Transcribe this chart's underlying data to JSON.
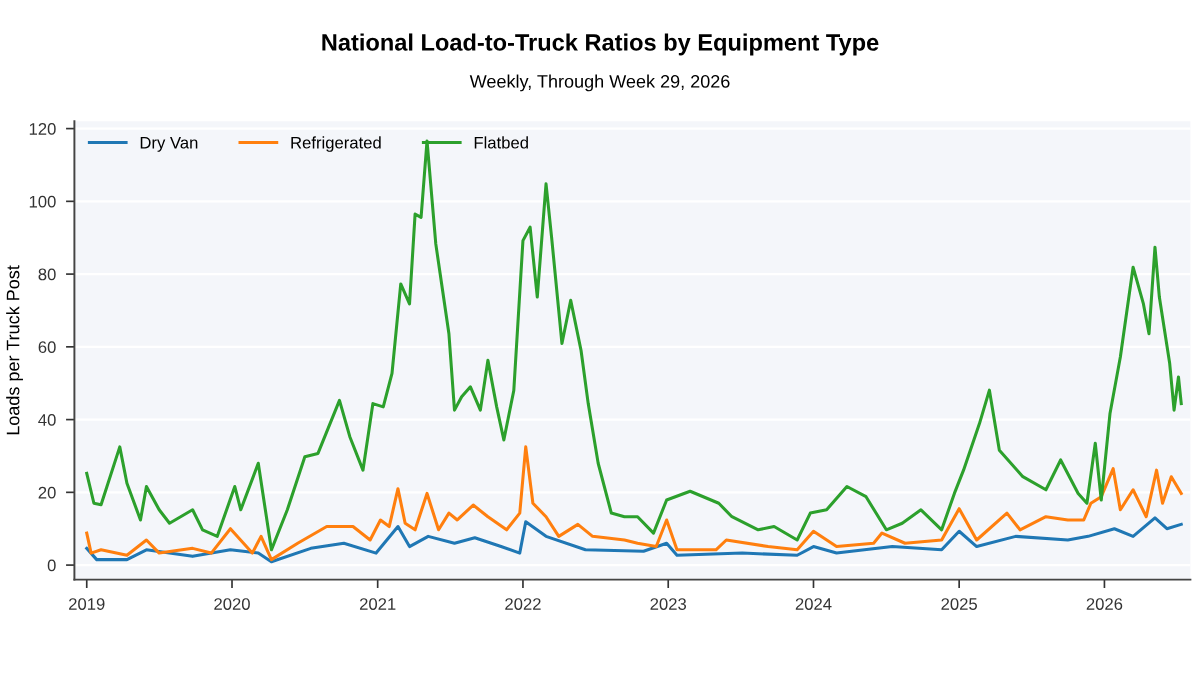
{
  "chart_data": {
    "type": "line",
    "title": "National Load-to-Truck Ratios by Equipment Type",
    "subtitle": "Weekly, Through Week 29, 2026",
    "ylabel": "Loads per Truck Post",
    "xlim": [
      "2018-12-01",
      "2026-08-05"
    ],
    "ylim": [
      -4,
      122
    ],
    "xticks": [
      {
        "value": "2019-01-01",
        "label": "2019"
      },
      {
        "value": "2020-01-01",
        "label": "2020"
      },
      {
        "value": "2021-01-01",
        "label": "2021"
      },
      {
        "value": "2022-01-01",
        "label": "2022"
      },
      {
        "value": "2023-01-01",
        "label": "2023"
      },
      {
        "value": "2024-01-01",
        "label": "2024"
      },
      {
        "value": "2025-01-01",
        "label": "2025"
      },
      {
        "value": "2026-01-01",
        "label": "2026"
      }
    ],
    "yticks": [
      0,
      20,
      40,
      60,
      80,
      100,
      120
    ],
    "grid": "y",
    "legend": "top left",
    "line_style": "solid",
    "marker": "none",
    "series": [
      {
        "name": "Dry Van",
        "color": "#1f77b4",
        "x": [
          "2019-01-01",
          "2019-01-26",
          "2019-04-12",
          "2019-05-31",
          "2019-09-24",
          "2019-12-28",
          "2020-03-07",
          "2020-04-09",
          "2020-07-17",
          "2020-10-08",
          "2020-12-28",
          "2021-02-21",
          "2021-03-22",
          "2021-05-08",
          "2021-07-13",
          "2021-09-02",
          "2021-11-07",
          "2021-12-24",
          "2022-01-08",
          "2022-02-28",
          "2022-06-07",
          "2022-10-31",
          "2022-12-28",
          "2023-01-23",
          "2023-07-06",
          "2023-11-21",
          "2024-01-01",
          "2024-02-28",
          "2024-07-17",
          "2024-11-18",
          "2025-01-01",
          "2025-02-14",
          "2025-05-23",
          "2025-10-01",
          "2025-11-21",
          "2026-01-26",
          "2026-03-14",
          "2026-05-08",
          "2026-06-07",
          "2026-07-13"
        ],
        "values": [
          4.6,
          1.5,
          1.5,
          4.2,
          2.4,
          4.2,
          3.3,
          0.9,
          4.6,
          6,
          3.3,
          10.6,
          5.1,
          7.9,
          6,
          7.5,
          5.1,
          3.3,
          11.9,
          7.9,
          4.2,
          3.8,
          6,
          2.7,
          3.3,
          2.7,
          5.1,
          3.3,
          5.1,
          4.2,
          9.3,
          5.1,
          7.9,
          6.9,
          7.9,
          10,
          7.9,
          13,
          10,
          11.2
        ]
      },
      {
        "name": "Refrigerated",
        "color": "#ff7f0e",
        "x": [
          "2019-01-01",
          "2019-01-12",
          "2019-02-06",
          "2019-04-12",
          "2019-05-31",
          "2019-07-02",
          "2019-09-24",
          "2019-11-10",
          "2019-12-28",
          "2020-02-21",
          "2020-03-14",
          "2020-04-09",
          "2020-06-14",
          "2020-08-26",
          "2020-10-31",
          "2020-12-13",
          "2021-01-08",
          "2021-01-30",
          "2021-02-21",
          "2021-03-11",
          "2021-04-05",
          "2021-05-05",
          "2021-06-03",
          "2021-06-29",
          "2021-07-20",
          "2021-08-29",
          "2021-10-05",
          "2021-11-21",
          "2021-12-24",
          "2022-01-08",
          "2022-01-26",
          "2022-02-28",
          "2022-04-01",
          "2022-05-19",
          "2022-06-25",
          "2022-09-13",
          "2022-10-16",
          "2022-12-02",
          "2022-12-28",
          "2023-01-23",
          "2023-05-01",
          "2023-05-27",
          "2023-09-09",
          "2023-11-21",
          "2024-01-01",
          "2024-02-28",
          "2024-05-31",
          "2024-06-21",
          "2024-08-18",
          "2024-11-18",
          "2025-01-01",
          "2025-02-14",
          "2025-05-01",
          "2025-06-03",
          "2025-08-07",
          "2025-10-01",
          "2025-11-10",
          "2025-11-28",
          "2025-12-24",
          "2026-01-23",
          "2026-02-10",
          "2026-03-14",
          "2026-04-16",
          "2026-05-12",
          "2026-05-27",
          "2026-06-18",
          "2026-07-13"
        ],
        "values": [
          8.8,
          3.3,
          4.2,
          2.7,
          6.9,
          3.3,
          4.6,
          3.3,
          10,
          3.3,
          7.9,
          1.5,
          6,
          10.6,
          10.6,
          6.9,
          12.4,
          10.6,
          21,
          11.5,
          9.7,
          19.7,
          9.7,
          14.3,
          12.4,
          16.5,
          13.3,
          9.7,
          14.3,
          32.5,
          17,
          13.3,
          7.9,
          11.2,
          7.9,
          6.9,
          6,
          5.1,
          12.4,
          4.2,
          4.2,
          6.9,
          5.1,
          4.2,
          9.3,
          5.1,
          6,
          8.8,
          6,
          6.9,
          15.5,
          6.9,
          14.3,
          9.7,
          13.3,
          12.4,
          12.4,
          17,
          18.8,
          26.5,
          15.2,
          20.7,
          13.3,
          26.1,
          17,
          24.3,
          19.7
        ]
      },
      {
        "name": "Flatbed",
        "color": "#2ca02c",
        "x": [
          "2019-01-01",
          "2019-01-19",
          "2019-02-06",
          "2019-03-25",
          "2019-04-12",
          "2019-05-16",
          "2019-05-31",
          "2019-07-02",
          "2019-07-28",
          "2019-09-24",
          "2019-10-19",
          "2019-11-25",
          "2020-01-08",
          "2020-01-23",
          "2020-03-07",
          "2020-04-09",
          "2020-05-19",
          "2020-07-02",
          "2020-08-04",
          "2020-09-27",
          "2020-10-23",
          "2020-11-25",
          "2020-12-20",
          "2021-01-15",
          "2021-02-06",
          "2021-02-28",
          "2021-03-22",
          "2021-04-05",
          "2021-04-20",
          "2021-05-05",
          "2021-05-27",
          "2021-06-29",
          "2021-07-13",
          "2021-07-31",
          "2021-08-22",
          "2021-09-16",
          "2021-10-05",
          "2021-10-27",
          "2021-11-14",
          "2021-12-09",
          "2022-01-01",
          "2022-01-19",
          "2022-02-06",
          "2022-02-28",
          "2022-03-14",
          "2022-04-09",
          "2022-05-01",
          "2022-05-27",
          "2022-06-14",
          "2022-07-09",
          "2022-08-11",
          "2022-09-13",
          "2022-10-16",
          "2022-11-25",
          "2022-12-28",
          "2023-02-25",
          "2023-05-08",
          "2023-06-10",
          "2023-08-15",
          "2023-09-24",
          "2023-11-21",
          "2023-12-24",
          "2024-02-03",
          "2024-03-25",
          "2024-05-12",
          "2024-07-02",
          "2024-08-11",
          "2024-09-27",
          "2024-11-18",
          "2024-12-20",
          "2025-01-12",
          "2025-02-21",
          "2025-03-18",
          "2025-04-12",
          "2025-06-10",
          "2025-08-07",
          "2025-09-13",
          "2025-10-27",
          "2025-11-18",
          "2025-12-09",
          "2025-12-24",
          "2026-01-15",
          "2026-02-10",
          "2026-03-14",
          "2026-04-09",
          "2026-04-23",
          "2026-05-08",
          "2026-05-19",
          "2026-06-14",
          "2026-06-25",
          "2026-07-06",
          "2026-07-13"
        ],
        "values": [
          25.2,
          17,
          16.6,
          32.5,
          22.5,
          12.4,
          21.6,
          15.2,
          11.5,
          15.2,
          9.7,
          7.9,
          21.6,
          15.2,
          28,
          4.2,
          15.2,
          29.8,
          30.7,
          45.3,
          35.3,
          26.1,
          44.4,
          43.5,
          52.7,
          77.3,
          71.8,
          96.5,
          95.6,
          116.6,
          88.3,
          63.6,
          42.6,
          46.3,
          49,
          42.6,
          56.3,
          43.5,
          34.4,
          48,
          89.2,
          92.9,
          73.7,
          104.8,
          90.1,
          60.9,
          72.8,
          59,
          44.4,
          28,
          14.3,
          13.3,
          13.3,
          8.8,
          17.9,
          20.3,
          17,
          13.3,
          9.7,
          10.6,
          6.9,
          14.3,
          15.2,
          21.6,
          18.8,
          9.7,
          11.5,
          15.2,
          9.7,
          19.7,
          26.1,
          38.9,
          48.1,
          31.6,
          24.3,
          20.7,
          28.9,
          19.7,
          17,
          33.5,
          17.9,
          41.7,
          57.2,
          81.9,
          71.8,
          63.6,
          87.4,
          73.7,
          55.4,
          42.6,
          51.7,
          44.4
        ]
      }
    ]
  }
}
